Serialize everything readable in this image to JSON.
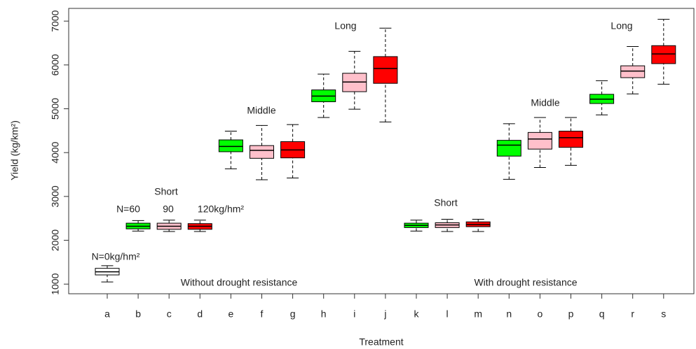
{
  "chart_data": {
    "type": "boxplot",
    "y_label": "Yield (kg/km²)",
    "x_label": "Treatment",
    "categories": [
      "a",
      "b",
      "c",
      "d",
      "e",
      "f",
      "g",
      "h",
      "i",
      "j",
      "k",
      "l",
      "m",
      "n",
      "o",
      "p",
      "q",
      "r",
      "s"
    ],
    "colors": [
      "#ffffff",
      "#00ff00",
      "#ffc0cb",
      "#ff0000",
      "#00ff00",
      "#ffc0cb",
      "#ff0000",
      "#00ff00",
      "#ffc0cb",
      "#ff0000",
      "#00ff00",
      "#ffc0cb",
      "#ff0000",
      "#00ff00",
      "#ffc0cb",
      "#ff0000",
      "#00ff00",
      "#ffc0cb",
      "#ff0000"
    ],
    "boxes": [
      {
        "min": 1050,
        "q1": 1210,
        "median": 1280,
        "q3": 1360,
        "max": 1420
      },
      {
        "min": 2210,
        "q1": 2260,
        "median": 2320,
        "q3": 2390,
        "max": 2450
      },
      {
        "min": 2200,
        "q1": 2250,
        "median": 2320,
        "q3": 2390,
        "max": 2460
      },
      {
        "min": 2200,
        "q1": 2250,
        "median": 2320,
        "q3": 2380,
        "max": 2460
      },
      {
        "min": 3630,
        "q1": 4020,
        "median": 4140,
        "q3": 4290,
        "max": 4490
      },
      {
        "min": 3380,
        "q1": 3870,
        "median": 4050,
        "q3": 4160,
        "max": 4620
      },
      {
        "min": 3420,
        "q1": 3880,
        "median": 4060,
        "q3": 4250,
        "max": 4640
      },
      {
        "min": 4800,
        "q1": 5160,
        "median": 5290,
        "q3": 5430,
        "max": 5790
      },
      {
        "min": 4990,
        "q1": 5390,
        "median": 5610,
        "q3": 5810,
        "max": 6310
      },
      {
        "min": 4700,
        "q1": 5580,
        "median": 5920,
        "q3": 6190,
        "max": 6840
      },
      {
        "min": 2210,
        "q1": 2290,
        "median": 2340,
        "q3": 2390,
        "max": 2460
      },
      {
        "min": 2200,
        "q1": 2290,
        "median": 2350,
        "q3": 2400,
        "max": 2480
      },
      {
        "min": 2200,
        "q1": 2310,
        "median": 2360,
        "q3": 2420,
        "max": 2480
      },
      {
        "min": 3390,
        "q1": 3920,
        "median": 4170,
        "q3": 4280,
        "max": 4660
      },
      {
        "min": 3660,
        "q1": 4080,
        "median": 4310,
        "q3": 4460,
        "max": 4800
      },
      {
        "min": 3710,
        "q1": 4120,
        "median": 4340,
        "q3": 4490,
        "max": 4800
      },
      {
        "min": 4860,
        "q1": 5120,
        "median": 5220,
        "q3": 5330,
        "max": 5640
      },
      {
        "min": 5340,
        "q1": 5710,
        "median": 5860,
        "q3": 5980,
        "max": 6420
      },
      {
        "min": 5560,
        "q1": 6030,
        "median": 6250,
        "q3": 6440,
        "max": 7040
      }
    ],
    "ylim": [
      780,
      7290
    ],
    "yticks": [
      1000,
      2000,
      3000,
      4000,
      5000,
      6000,
      7000
    ],
    "annotations": [
      "N=0kg/hm²",
      "N=60",
      "90",
      "120kg/hm²",
      "Short",
      "Middle",
      "Long",
      "Short",
      "Middle",
      "Long",
      "Without drought resistance",
      "With drought resistance"
    ]
  }
}
